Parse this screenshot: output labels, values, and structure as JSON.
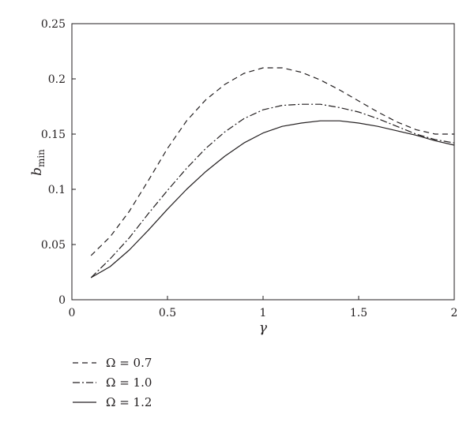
{
  "chart_data": {
    "type": "line",
    "title": "",
    "xlabel": "γ",
    "ylabel_main": "b",
    "ylabel_sub": "min",
    "xlim": [
      0,
      2
    ],
    "ylim": [
      0,
      0.25
    ],
    "x_ticks": [
      "0",
      "0.5",
      "1",
      "1.5",
      "2"
    ],
    "y_ticks": [
      "0",
      "0.05",
      "0.1",
      "0.15",
      "0.2",
      "0.25"
    ],
    "grid": false,
    "legend_position": "below-left",
    "series": [
      {
        "name": "Ω = 0.7",
        "style": "dashed",
        "x": [
          0.1,
          0.2,
          0.3,
          0.4,
          0.5,
          0.6,
          0.7,
          0.8,
          0.9,
          1.0,
          1.1,
          1.2,
          1.3,
          1.4,
          1.5,
          1.6,
          1.7,
          1.8,
          1.9,
          2.0
        ],
        "y": [
          0.04,
          0.057,
          0.08,
          0.108,
          0.137,
          0.162,
          0.181,
          0.195,
          0.205,
          0.21,
          0.21,
          0.206,
          0.199,
          0.19,
          0.18,
          0.17,
          0.161,
          0.154,
          0.15,
          0.15
        ]
      },
      {
        "name": "Ω = 1.0",
        "style": "dashdot",
        "x": [
          0.1,
          0.2,
          0.3,
          0.4,
          0.5,
          0.6,
          0.7,
          0.8,
          0.9,
          1.0,
          1.1,
          1.2,
          1.3,
          1.4,
          1.5,
          1.6,
          1.7,
          1.8,
          1.9,
          2.0
        ],
        "y": [
          0.02,
          0.037,
          0.056,
          0.078,
          0.099,
          0.119,
          0.137,
          0.152,
          0.164,
          0.172,
          0.176,
          0.177,
          0.177,
          0.174,
          0.17,
          0.164,
          0.157,
          0.15,
          0.145,
          0.142
        ]
      },
      {
        "name": "Ω = 1.2",
        "style": "solid",
        "x": [
          0.1,
          0.2,
          0.3,
          0.4,
          0.5,
          0.6,
          0.7,
          0.8,
          0.9,
          1.0,
          1.1,
          1.2,
          1.3,
          1.4,
          1.5,
          1.6,
          1.7,
          1.8,
          1.9,
          2.0
        ],
        "y": [
          0.02,
          0.03,
          0.045,
          0.063,
          0.082,
          0.1,
          0.116,
          0.13,
          0.142,
          0.151,
          0.157,
          0.16,
          0.162,
          0.162,
          0.16,
          0.157,
          0.153,
          0.149,
          0.144,
          0.14
        ]
      }
    ]
  }
}
